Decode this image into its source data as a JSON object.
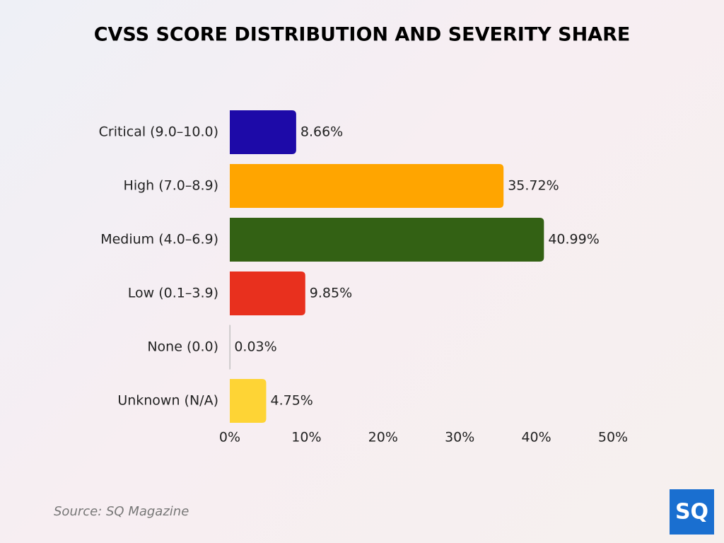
{
  "chart_data": {
    "type": "bar",
    "orientation": "horizontal",
    "title": "CVSS SCORE DISTRIBUTION AND SEVERITY SHARE",
    "categories": [
      "Critical (9.0–10.0)",
      "High (7.0–8.9)",
      "Medium (4.0–6.9)",
      "Low (0.1–3.9)",
      "None (0.0)",
      "Unknown (N/A)"
    ],
    "values": [
      8.66,
      35.72,
      40.99,
      9.85,
      0.03,
      4.75
    ],
    "value_labels": [
      "8.66%",
      "35.72%",
      "40.99%",
      "9.85%",
      "0.03%",
      "4.75%"
    ],
    "colors": [
      "#1d0aa8",
      "#ffa500",
      "#336114",
      "#e8301e",
      "#bbbbbb",
      "#fed435"
    ],
    "xlim": [
      0,
      50
    ],
    "xticks": [
      {
        "value": 0,
        "label": "0%"
      },
      {
        "value": 10,
        "label": "10%"
      },
      {
        "value": 20,
        "label": "20%"
      },
      {
        "value": 30,
        "label": "30%"
      },
      {
        "value": 40,
        "label": "40%"
      },
      {
        "value": 50,
        "label": "50%"
      }
    ],
    "grid": false,
    "source": "Source: SQ Magazine",
    "logo": "SQ"
  }
}
